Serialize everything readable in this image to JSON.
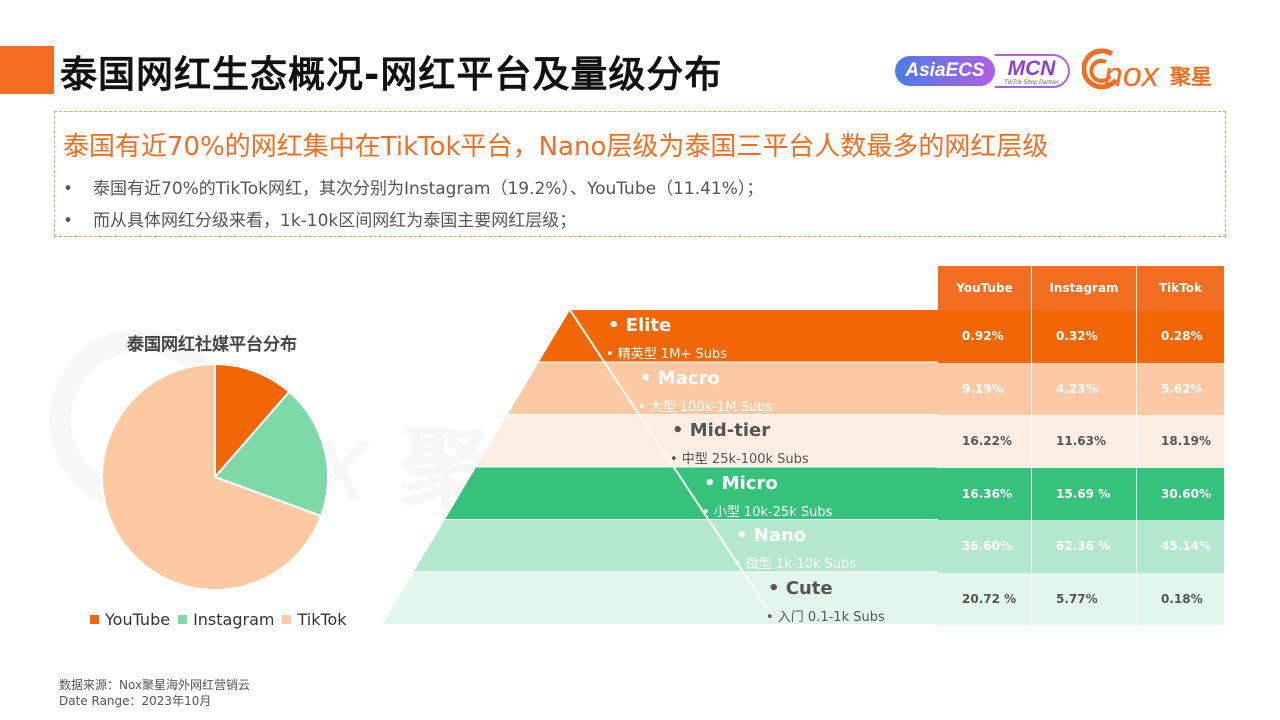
{
  "header": {
    "title": "泰国网红生态概况-网红平台及量级分布",
    "logos": {
      "asia": "AsiaECS",
      "mcn": "MCN",
      "mcn_sub": "TikTok Shop Partner",
      "nox": "nox",
      "nox_cn": "聚星"
    }
  },
  "summary": {
    "headline": "泰国有近70%的网红集中在TikTok平台，Nano层级为泰国三平台人数最多的网红层级",
    "bullets": [
      "泰国有近70%的TikTok网红，其次分别为Instagram（19.2%）、YouTube（11.41%）；",
      "而从具体网红分级来看，1k-10k区间网红为泰国主要网红层级；"
    ],
    "bullet_marker": "•"
  },
  "pie": {
    "title": "泰国网红社媒平台分布",
    "legend": [
      "YouTube",
      "Instagram",
      "TikTok"
    ]
  },
  "tiers": [
    {
      "name": "Elite",
      "sub": "精英型 1M+ Subs",
      "color": "#f36605",
      "text": "#ffffff"
    },
    {
      "name": "Macro",
      "sub": "大型 100k-1M Subs",
      "color": "#fbc9a4",
      "text": "#ffffff"
    },
    {
      "name": "Mid-tier",
      "sub": "中型 25k-100k Subs",
      "color": "#fdeee3",
      "text": "#555555"
    },
    {
      "name": "Micro",
      "sub": "小型 10k-25k Subs",
      "color": "#35c27a",
      "text": "#ffffff"
    },
    {
      "name": "Nano",
      "sub": "微型 1k-10k Subs",
      "color": "#b4e8cd",
      "text": "#ffffff"
    },
    {
      "name": "Cute",
      "sub": "入门 0.1-1k Subs",
      "color": "#e3f6ec",
      "text": "#555555"
    }
  ],
  "table": {
    "headers": [
      "YouTube",
      "Instagram",
      "TikTok"
    ],
    "rows": [
      [
        "0.92%",
        "0.32%",
        "0.28%"
      ],
      [
        "9.19%",
        "4.23%",
        "5.62%"
      ],
      [
        "16.22%",
        "11.63%",
        "18.19%"
      ],
      [
        "16.36%",
        "15.69 %",
        "30.60%"
      ],
      [
        "36.60%",
        "62.36 %",
        "45.14%"
      ],
      [
        "20.72 %",
        "5.77%",
        "0.18%"
      ]
    ]
  },
  "footer": {
    "source": "数据来源：Nox聚星海外网红营销云",
    "date": "Date Range：2023年10月"
  },
  "chart_data": [
    {
      "type": "pie",
      "title": "泰国网红社媒平台分布",
      "labels": [
        "YouTube",
        "Instagram",
        "TikTok"
      ],
      "values": [
        11.41,
        19.2,
        69.39
      ],
      "colors": [
        "#f36605",
        "#7dd9a8",
        "#fcc9a3"
      ],
      "legend": "bottom"
    },
    {
      "type": "table",
      "columns": [
        "YouTube",
        "Instagram",
        "TikTok"
      ],
      "row_labels": [
        "Elite",
        "Macro",
        "Mid-tier",
        "Micro",
        "Nano",
        "Cute"
      ],
      "values": [
        [
          "0.92%",
          "0.32%",
          "0.28%"
        ],
        [
          "9.19%",
          "4.23%",
          "5.62%"
        ],
        [
          "16.22%",
          "11.63%",
          "18.19%"
        ],
        [
          "16.36%",
          "15.69 %",
          "30.60%"
        ],
        [
          "36.60%",
          "62.36 %",
          "45.14%"
        ],
        [
          "20.72 %",
          "5.77%",
          "0.18%"
        ]
      ]
    }
  ]
}
